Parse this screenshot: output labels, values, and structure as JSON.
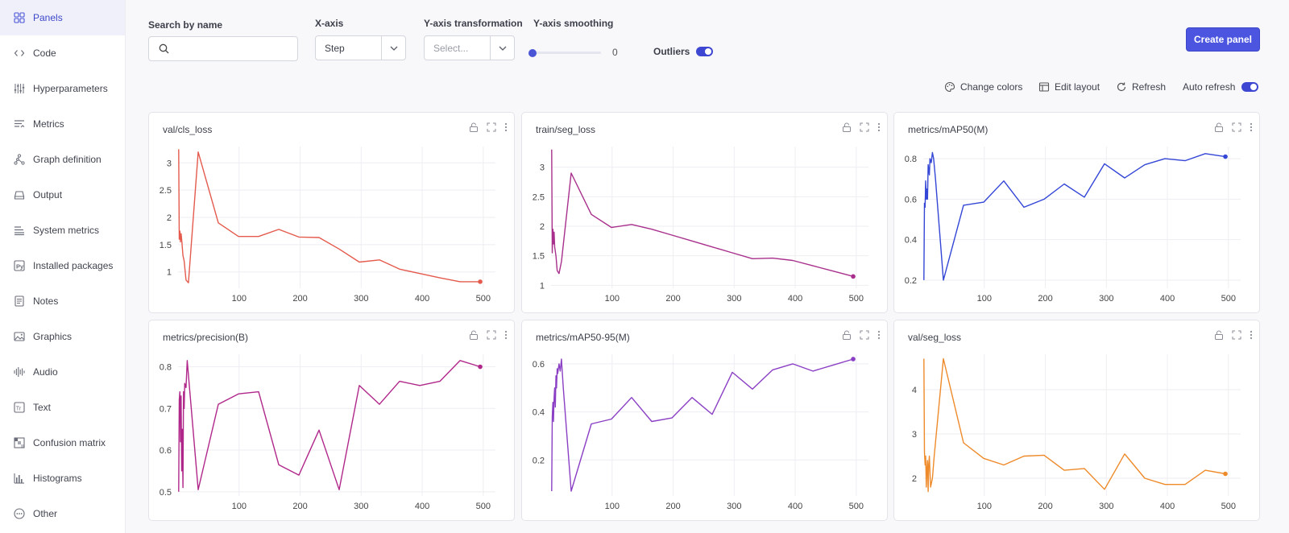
{
  "sidebar": {
    "items": [
      {
        "label": "Panels",
        "icon": "panels-icon",
        "active": true
      },
      {
        "label": "Code",
        "icon": "code-icon"
      },
      {
        "label": "Hyperparameters",
        "icon": "sliders-icon"
      },
      {
        "label": "Metrics",
        "icon": "metrics-icon"
      },
      {
        "label": "Graph definition",
        "icon": "graph-icon"
      },
      {
        "label": "Output",
        "icon": "output-icon"
      },
      {
        "label": "System metrics",
        "icon": "system-icon"
      },
      {
        "label": "Installed packages",
        "icon": "python-icon"
      },
      {
        "label": "Notes",
        "icon": "notes-icon"
      },
      {
        "label": "Graphics",
        "icon": "image-icon"
      },
      {
        "label": "Audio",
        "icon": "audio-icon"
      },
      {
        "label": "Text",
        "icon": "text-icon"
      },
      {
        "label": "Confusion matrix",
        "icon": "matrix-icon"
      },
      {
        "label": "Histograms",
        "icon": "histogram-icon"
      },
      {
        "label": "Other",
        "icon": "other-icon"
      }
    ]
  },
  "controls": {
    "search_label": "Search by name",
    "search_value": "",
    "xaxis_label": "X-axis",
    "xaxis_value": "Step",
    "ytransform_label": "Y-axis transformation",
    "ytransform_placeholder": "Select...",
    "smoothing_label": "Y-axis smoothing",
    "smoothing_value": "0",
    "outliers_label": "Outliers",
    "outliers_on": true,
    "create_panel": "Create panel"
  },
  "toolbar": {
    "change_colors": "Change colors",
    "edit_layout": "Edit layout",
    "refresh": "Refresh",
    "auto_refresh": "Auto refresh",
    "auto_refresh_on": true
  },
  "chart_data": [
    {
      "type": "line",
      "title": "val/cls_loss",
      "color": "#e45a4c",
      "xlim": [
        0,
        520
      ],
      "ylim": [
        0.7,
        3.3
      ],
      "xticks": [
        100,
        200,
        300,
        400,
        500
      ],
      "yticks": [
        1,
        1.5,
        2,
        2.5,
        3
      ],
      "x": [
        1,
        2,
        3,
        4,
        5,
        6,
        8,
        10,
        13,
        17,
        33,
        66,
        99,
        132,
        165,
        198,
        231,
        264,
        297,
        330,
        363,
        396,
        429,
        462,
        495
      ],
      "y": [
        3.25,
        1.6,
        1.75,
        1.55,
        1.7,
        1.6,
        1.3,
        1.2,
        0.85,
        0.8,
        3.2,
        1.9,
        1.65,
        1.65,
        1.78,
        1.64,
        1.63,
        1.42,
        1.18,
        1.22,
        1.05,
        0.97,
        0.89,
        0.82,
        0.82
      ]
    },
    {
      "type": "line",
      "title": "train/seg_loss",
      "color": "#a8308c",
      "xlim": [
        0,
        520
      ],
      "ylim": [
        0.95,
        3.35
      ],
      "xticks": [
        100,
        200,
        300,
        400,
        500
      ],
      "yticks": [
        1,
        1.5,
        2,
        2.5,
        3
      ],
      "x": [
        1,
        2,
        3,
        4,
        5,
        6,
        8,
        10,
        13,
        17,
        33,
        66,
        99,
        132,
        165,
        198,
        231,
        264,
        297,
        330,
        363,
        396,
        429,
        462,
        495
      ],
      "y": [
        3.3,
        1.55,
        1.95,
        1.7,
        1.9,
        1.65,
        1.5,
        1.25,
        1.2,
        1.4,
        2.9,
        2.2,
        1.98,
        2.03,
        1.95,
        1.85,
        1.75,
        1.65,
        1.55,
        1.45,
        1.46,
        1.42,
        1.33,
        1.24,
        1.15
      ]
    },
    {
      "type": "line",
      "title": "metrics/mAP50(M)",
      "color": "#3346d6",
      "xlim": [
        0,
        520
      ],
      "ylim": [
        0.16,
        0.86
      ],
      "xticks": [
        100,
        200,
        300,
        400,
        500
      ],
      "yticks": [
        0.2,
        0.4,
        0.6,
        0.8
      ],
      "x": [
        1,
        2,
        3,
        4,
        5,
        6,
        7,
        8,
        10,
        11,
        13,
        15,
        17,
        20,
        33,
        66,
        99,
        132,
        165,
        198,
        231,
        264,
        297,
        330,
        363,
        396,
        429,
        462,
        495
      ],
      "y": [
        0.2,
        0.58,
        0.56,
        0.69,
        0.6,
        0.65,
        0.6,
        0.77,
        0.72,
        0.8,
        0.78,
        0.83,
        0.8,
        0.7,
        0.2,
        0.57,
        0.585,
        0.69,
        0.56,
        0.6,
        0.675,
        0.61,
        0.775,
        0.705,
        0.77,
        0.8,
        0.79,
        0.825,
        0.81
      ]
    },
    {
      "type": "line",
      "title": "metrics/precision(B)",
      "color": "#b0278a",
      "xlim": [
        0,
        520
      ],
      "ylim": [
        0.49,
        0.83
      ],
      "xticks": [
        100,
        200,
        300,
        400,
        500
      ],
      "yticks": [
        0.5,
        0.6,
        0.7,
        0.8
      ],
      "x": [
        1,
        2,
        3,
        4,
        5,
        6,
        7,
        8,
        9,
        10,
        11,
        13,
        15,
        17,
        33,
        66,
        99,
        132,
        165,
        198,
        231,
        264,
        297,
        330,
        363,
        396,
        429,
        462,
        495
      ],
      "y": [
        0.5,
        0.72,
        0.74,
        0.62,
        0.73,
        0.55,
        0.65,
        0.51,
        0.74,
        0.7,
        0.76,
        0.75,
        0.815,
        0.78,
        0.505,
        0.71,
        0.735,
        0.74,
        0.565,
        0.54,
        0.648,
        0.505,
        0.755,
        0.71,
        0.765,
        0.755,
        0.765,
        0.815,
        0.8
      ]
    },
    {
      "type": "line",
      "title": "metrics/mAP50-95(M)",
      "color": "#8a3fc4",
      "xlim": [
        0,
        520
      ],
      "ylim": [
        0.05,
        0.64
      ],
      "xticks": [
        100,
        200,
        300,
        400,
        500
      ],
      "yticks": [
        0.2,
        0.4,
        0.6
      ],
      "x": [
        1,
        2,
        3,
        4,
        5,
        6,
        7,
        8,
        9,
        10,
        11,
        13,
        15,
        17,
        20,
        33,
        66,
        99,
        132,
        165,
        198,
        231,
        264,
        297,
        330,
        363,
        396,
        429,
        462,
        495
      ],
      "y": [
        0.07,
        0.38,
        0.44,
        0.36,
        0.46,
        0.5,
        0.42,
        0.55,
        0.5,
        0.58,
        0.56,
        0.6,
        0.57,
        0.62,
        0.5,
        0.07,
        0.35,
        0.37,
        0.46,
        0.36,
        0.375,
        0.46,
        0.39,
        0.565,
        0.495,
        0.575,
        0.6,
        0.57,
        0.595,
        0.62
      ]
    },
    {
      "type": "line",
      "title": "val/seg_loss",
      "color": "#ee8a2a",
      "xlim": [
        0,
        520
      ],
      "ylim": [
        1.6,
        4.8
      ],
      "xticks": [
        100,
        200,
        300,
        400,
        500
      ],
      "yticks": [
        2,
        3,
        4
      ],
      "x": [
        1,
        2,
        3,
        4,
        5,
        6,
        7,
        8,
        9,
        10,
        12,
        15,
        18,
        33,
        66,
        99,
        132,
        165,
        198,
        231,
        264,
        297,
        330,
        363,
        396,
        429,
        462,
        495
      ],
      "y": [
        4.7,
        2.6,
        2.3,
        2.5,
        1.8,
        2.2,
        2.4,
        1.7,
        2.3,
        2.5,
        1.8,
        2.0,
        2.5,
        4.7,
        2.8,
        2.45,
        2.3,
        2.5,
        2.52,
        2.18,
        2.22,
        1.75,
        2.55,
        2.0,
        1.86,
        1.86,
        2.18,
        2.1
      ]
    }
  ]
}
